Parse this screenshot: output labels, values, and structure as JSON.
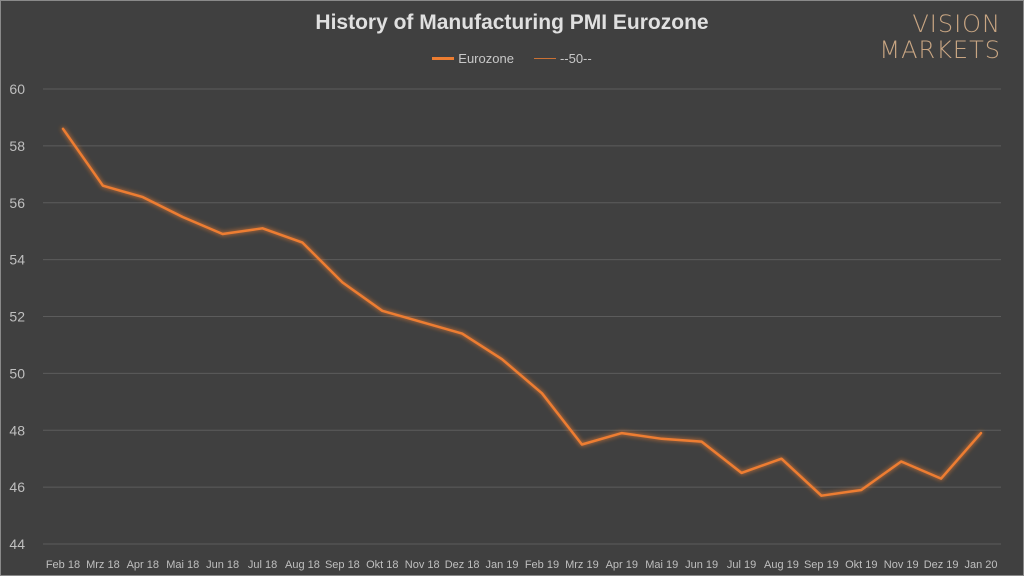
{
  "logo": {
    "line1": "VISION",
    "line2": "MARKETS"
  },
  "chart_data": {
    "type": "line",
    "title": "History of Manufacturing PMI Eurozone",
    "categories": [
      "Feb 18",
      "Mrz 18",
      "Apr 18",
      "Mai 18",
      "Jun 18",
      "Jul 18",
      "Aug 18",
      "Sep 18",
      "Okt 18",
      "Nov 18",
      "Dez 18",
      "Jan 19",
      "Feb 19",
      "Mrz 19",
      "Apr 19",
      "Mai 19",
      "Jun 19",
      "Jul 19",
      "Aug 19",
      "Sep 19",
      "Okt 19",
      "Nov 19",
      "Dez 19",
      "Jan 20"
    ],
    "series": [
      {
        "name": "Eurozone",
        "color": "#ed7d31",
        "values": [
          58.6,
          56.6,
          56.2,
          55.5,
          54.9,
          55.1,
          54.6,
          53.2,
          52.2,
          51.8,
          51.4,
          50.5,
          49.3,
          47.5,
          47.9,
          47.7,
          47.6,
          46.5,
          47.0,
          45.7,
          45.9,
          46.9,
          46.3,
          47.9
        ]
      },
      {
        "name": "--50--",
        "color": "#ed7d31",
        "values": [
          50,
          50,
          50,
          50,
          50,
          50,
          50,
          50,
          50,
          50,
          50,
          50,
          50,
          50,
          50,
          50,
          50,
          50,
          50,
          50,
          50,
          50,
          50,
          50
        ]
      }
    ],
    "yticks": [
      44,
      46,
      48,
      50,
      52,
      54,
      56,
      58,
      60
    ],
    "ylim": [
      44,
      60
    ],
    "grid": true,
    "legend": "top-center"
  }
}
